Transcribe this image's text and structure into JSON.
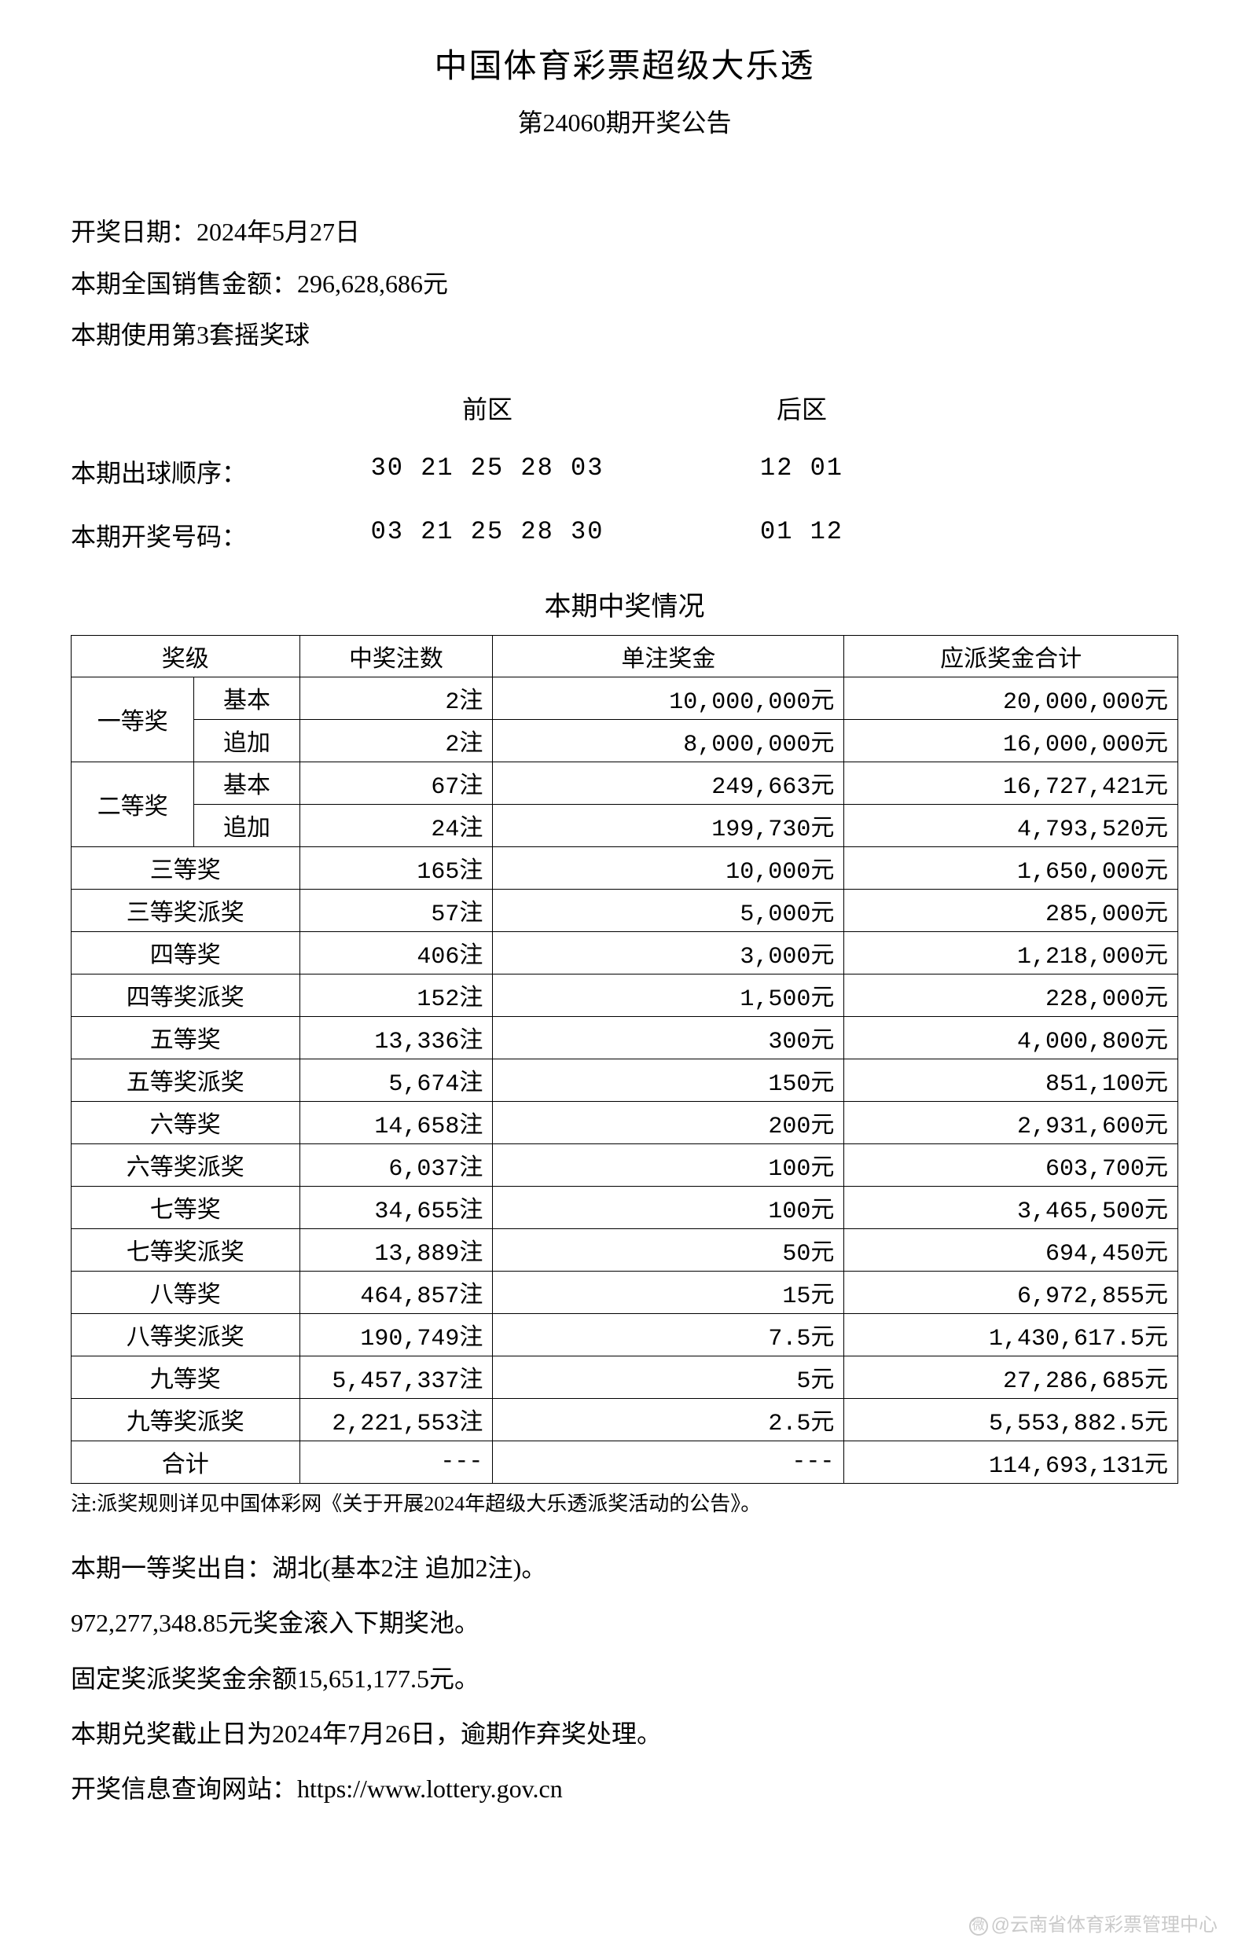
{
  "header": {
    "title": "中国体育彩票超级大乐透",
    "subtitle": "第24060期开奖公告"
  },
  "info": {
    "draw_date_label": "开奖日期：",
    "draw_date_value": "2024年5月27日",
    "sales_label": "本期全国销售金额：",
    "sales_value": "296,628,686元",
    "ballset_label": "本期使用第3套摇奖球"
  },
  "numbers": {
    "front_label": "前区",
    "back_label": "后区",
    "draw_order_label": "本期出球顺序：",
    "draw_order_front": "30 21 25 28 03",
    "draw_order_back": "12 01",
    "winning_label": "本期开奖号码：",
    "winning_front": "03 21 25 28 30",
    "winning_back": "01 12"
  },
  "prize_section_title": "本期中奖情况",
  "table": {
    "columns": [
      "奖级",
      "中奖注数",
      "单注奖金",
      "应派奖金合计"
    ],
    "rows": [
      {
        "prize": "一等奖",
        "sub": "基本",
        "count": "2注",
        "amount": "10,000,000元",
        "total": "20,000,000元",
        "rowspan": 2
      },
      {
        "prize": "",
        "sub": "追加",
        "count": "2注",
        "amount": "8,000,000元",
        "total": "16,000,000元"
      },
      {
        "prize": "二等奖",
        "sub": "基本",
        "count": "67注",
        "amount": "249,663元",
        "total": "16,727,421元",
        "rowspan": 2
      },
      {
        "prize": "",
        "sub": "追加",
        "count": "24注",
        "amount": "199,730元",
        "total": "4,793,520元"
      },
      {
        "prize": "三等奖",
        "count": "165注",
        "amount": "10,000元",
        "total": "1,650,000元"
      },
      {
        "prize": "三等奖派奖",
        "count": "57注",
        "amount": "5,000元",
        "total": "285,000元"
      },
      {
        "prize": "四等奖",
        "count": "406注",
        "amount": "3,000元",
        "total": "1,218,000元"
      },
      {
        "prize": "四等奖派奖",
        "count": "152注",
        "amount": "1,500元",
        "total": "228,000元"
      },
      {
        "prize": "五等奖",
        "count": "13,336注",
        "amount": "300元",
        "total": "4,000,800元"
      },
      {
        "prize": "五等奖派奖",
        "count": "5,674注",
        "amount": "150元",
        "total": "851,100元"
      },
      {
        "prize": "六等奖",
        "count": "14,658注",
        "amount": "200元",
        "total": "2,931,600元"
      },
      {
        "prize": "六等奖派奖",
        "count": "6,037注",
        "amount": "100元",
        "total": "603,700元"
      },
      {
        "prize": "七等奖",
        "count": "34,655注",
        "amount": "100元",
        "total": "3,465,500元"
      },
      {
        "prize": "七等奖派奖",
        "count": "13,889注",
        "amount": "50元",
        "total": "694,450元"
      },
      {
        "prize": "八等奖",
        "count": "464,857注",
        "amount": "15元",
        "total": "6,972,855元"
      },
      {
        "prize": "八等奖派奖",
        "count": "190,749注",
        "amount": "7.5元",
        "total": "1,430,617.5元"
      },
      {
        "prize": "九等奖",
        "count": "5,457,337注",
        "amount": "5元",
        "total": "27,286,685元"
      },
      {
        "prize": "九等奖派奖",
        "count": "2,221,553注",
        "amount": "2.5元",
        "total": "5,553,882.5元"
      },
      {
        "prize": "合计",
        "count": "---",
        "amount": "---",
        "total": "114,693,131元"
      }
    ]
  },
  "note": "注:派奖规则详见中国体彩网《关于开展2024年超级大乐透派奖活动的公告》。",
  "footer": {
    "line1": "本期一等奖出自：湖北(基本2注 追加2注)。",
    "line2": "972,277,348.85元奖金滚入下期奖池。",
    "line3": "固定奖派奖奖金余额15,651,177.5元。",
    "line4": "本期兑奖截止日为2024年7月26日，逾期作弃奖处理。",
    "line5": "开奖信息查询网站：https://www.lottery.gov.cn"
  },
  "watermark": "@云南省体育彩票管理中心"
}
